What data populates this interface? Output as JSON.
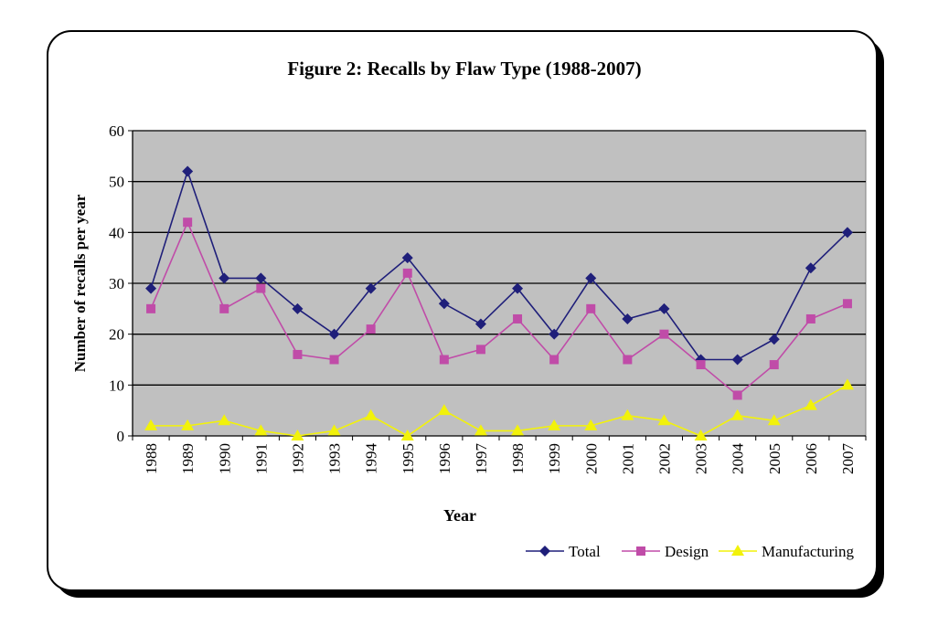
{
  "chart_data": {
    "type": "line",
    "title": "Figure 2: Recalls by Flaw Type (1988-2007)",
    "xlabel": "Year",
    "ylabel": "Number of recalls per year",
    "categories": [
      "1988",
      "1989",
      "1990",
      "1991",
      "1992",
      "1993",
      "1994",
      "1995",
      "1996",
      "1997",
      "1998",
      "1999",
      "2000",
      "2001",
      "2002",
      "2003",
      "2004",
      "2005",
      "2006",
      "2007"
    ],
    "ylim": [
      0,
      60
    ],
    "yticks": [
      0,
      10,
      20,
      30,
      40,
      50,
      60
    ],
    "grid": "horizontal",
    "legend": "bottom-right",
    "plot_background": "#c0c0c0",
    "series": [
      {
        "name": "Total",
        "color": "#1f1f7a",
        "marker": "diamond",
        "values": [
          29,
          52,
          31,
          31,
          25,
          20,
          29,
          35,
          26,
          22,
          29,
          20,
          31,
          23,
          25,
          15,
          15,
          19,
          33,
          40
        ]
      },
      {
        "name": "Design",
        "color": "#c04ca8",
        "marker": "square",
        "values": [
          25,
          42,
          25,
          29,
          16,
          15,
          21,
          32,
          15,
          17,
          23,
          15,
          25,
          15,
          20,
          14,
          8,
          14,
          23,
          26
        ]
      },
      {
        "name": "Manufacturing",
        "color": "#f2f20a",
        "marker": "triangle",
        "values": [
          2,
          2,
          3,
          1,
          0,
          1,
          4,
          0,
          5,
          1,
          1,
          2,
          2,
          4,
          3,
          0,
          4,
          3,
          6,
          10
        ]
      }
    ]
  }
}
